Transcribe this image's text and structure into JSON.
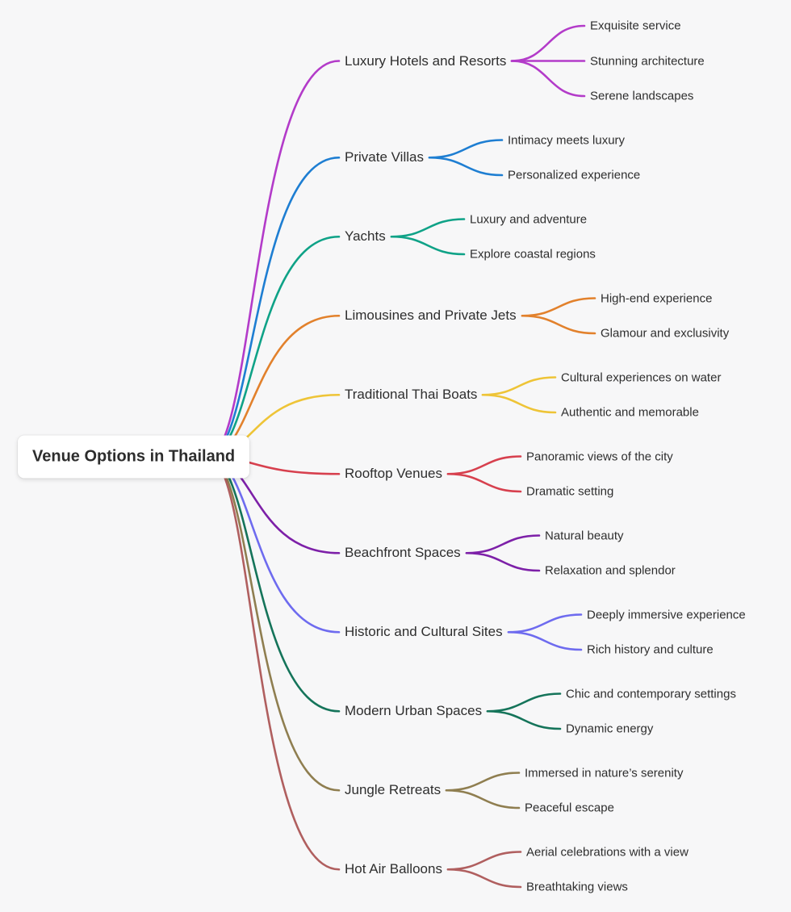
{
  "canvas": {
    "background": "#f7f7f8"
  },
  "root": {
    "label": "Venue Options in Thailand"
  },
  "branches": [
    {
      "label": "Luxury Hotels and Resorts",
      "color": "#b33bc9",
      "children": [
        "Exquisite service",
        "Stunning architecture",
        "Serene landscapes"
      ]
    },
    {
      "label": "Private Villas",
      "color": "#1e7ed2",
      "children": [
        "Intimacy meets luxury",
        "Personalized experience"
      ]
    },
    {
      "label": "Yachts",
      "color": "#0fa287",
      "children": [
        "Luxury and adventure",
        "Explore coastal regions"
      ]
    },
    {
      "label": "Limousines and Private Jets",
      "color": "#e2812c",
      "children": [
        "High-end experience",
        "Glamour and exclusivity"
      ]
    },
    {
      "label": "Traditional Thai Boats",
      "color": "#eec437",
      "children": [
        "Cultural experiences on water",
        "Authentic and memorable"
      ]
    },
    {
      "label": "Rooftop Venues",
      "color": "#d7404e",
      "children": [
        "Panoramic views of the city",
        "Dramatic setting"
      ]
    },
    {
      "label": "Beachfront Spaces",
      "color": "#7d20a8",
      "children": [
        "Natural beauty",
        "Relaxation and splendor"
      ]
    },
    {
      "label": "Historic and Cultural Sites",
      "color": "#6e6bef",
      "children": [
        "Deeply immersive experience",
        "Rich history and culture"
      ]
    },
    {
      "label": "Modern Urban Spaces",
      "color": "#15745a",
      "children": [
        "Chic and contemporary settings",
        "Dynamic energy"
      ]
    },
    {
      "label": "Jungle Retreats",
      "color": "#8f7e50",
      "children": [
        "Immersed in nature’s serenity",
        "Peaceful escape"
      ]
    },
    {
      "label": "Hot Air Balloons",
      "color": "#b05f5f",
      "children": [
        "Aerial celebrations with a view",
        "Breathtaking views"
      ]
    }
  ]
}
